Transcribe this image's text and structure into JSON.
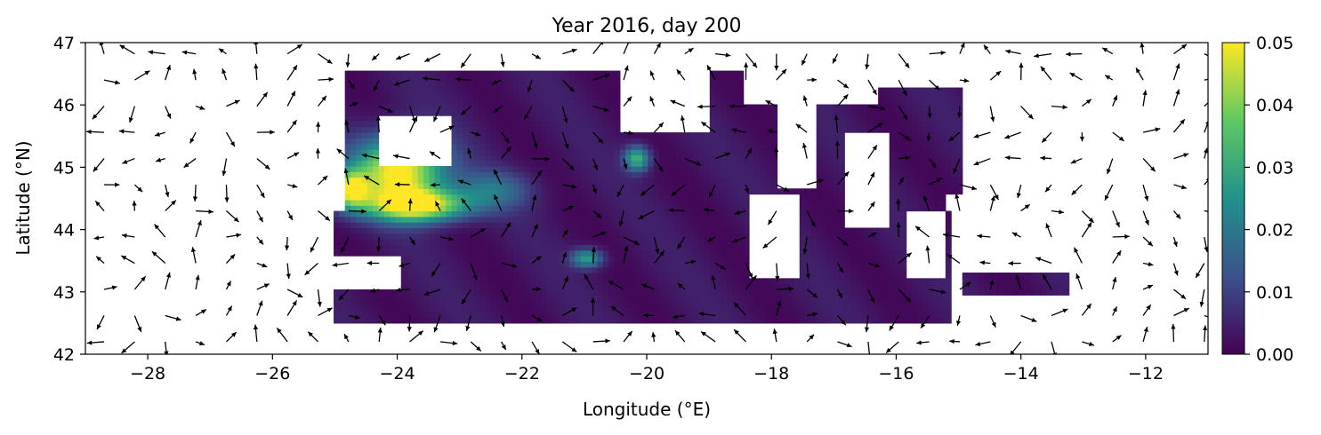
{
  "chart_data": {
    "type": "heatmap",
    "title": "Year 2016, day 200",
    "xlabel": "Longitude (°E)",
    "ylabel": "Latitude (°N)",
    "xlim": [
      -29,
      -11
    ],
    "ylim": [
      42,
      47
    ],
    "x_ticks": [
      -28,
      -26,
      -24,
      -22,
      -20,
      -18,
      -16,
      -14,
      -12
    ],
    "y_ticks": [
      42,
      43,
      44,
      45,
      46,
      47
    ],
    "colorbar": {
      "colormap": "viridis",
      "range": [
        0,
        0.05
      ],
      "ticks": [
        "0.00",
        "0.01",
        "0.02",
        "0.03",
        "0.04",
        "0.05"
      ]
    },
    "overlay": "quiver vector field (black arrows)",
    "grid": false,
    "colors": {
      "low": "#440154",
      "mid": "#21918c",
      "high": "#fde725",
      "arrows": "#000000"
    }
  }
}
